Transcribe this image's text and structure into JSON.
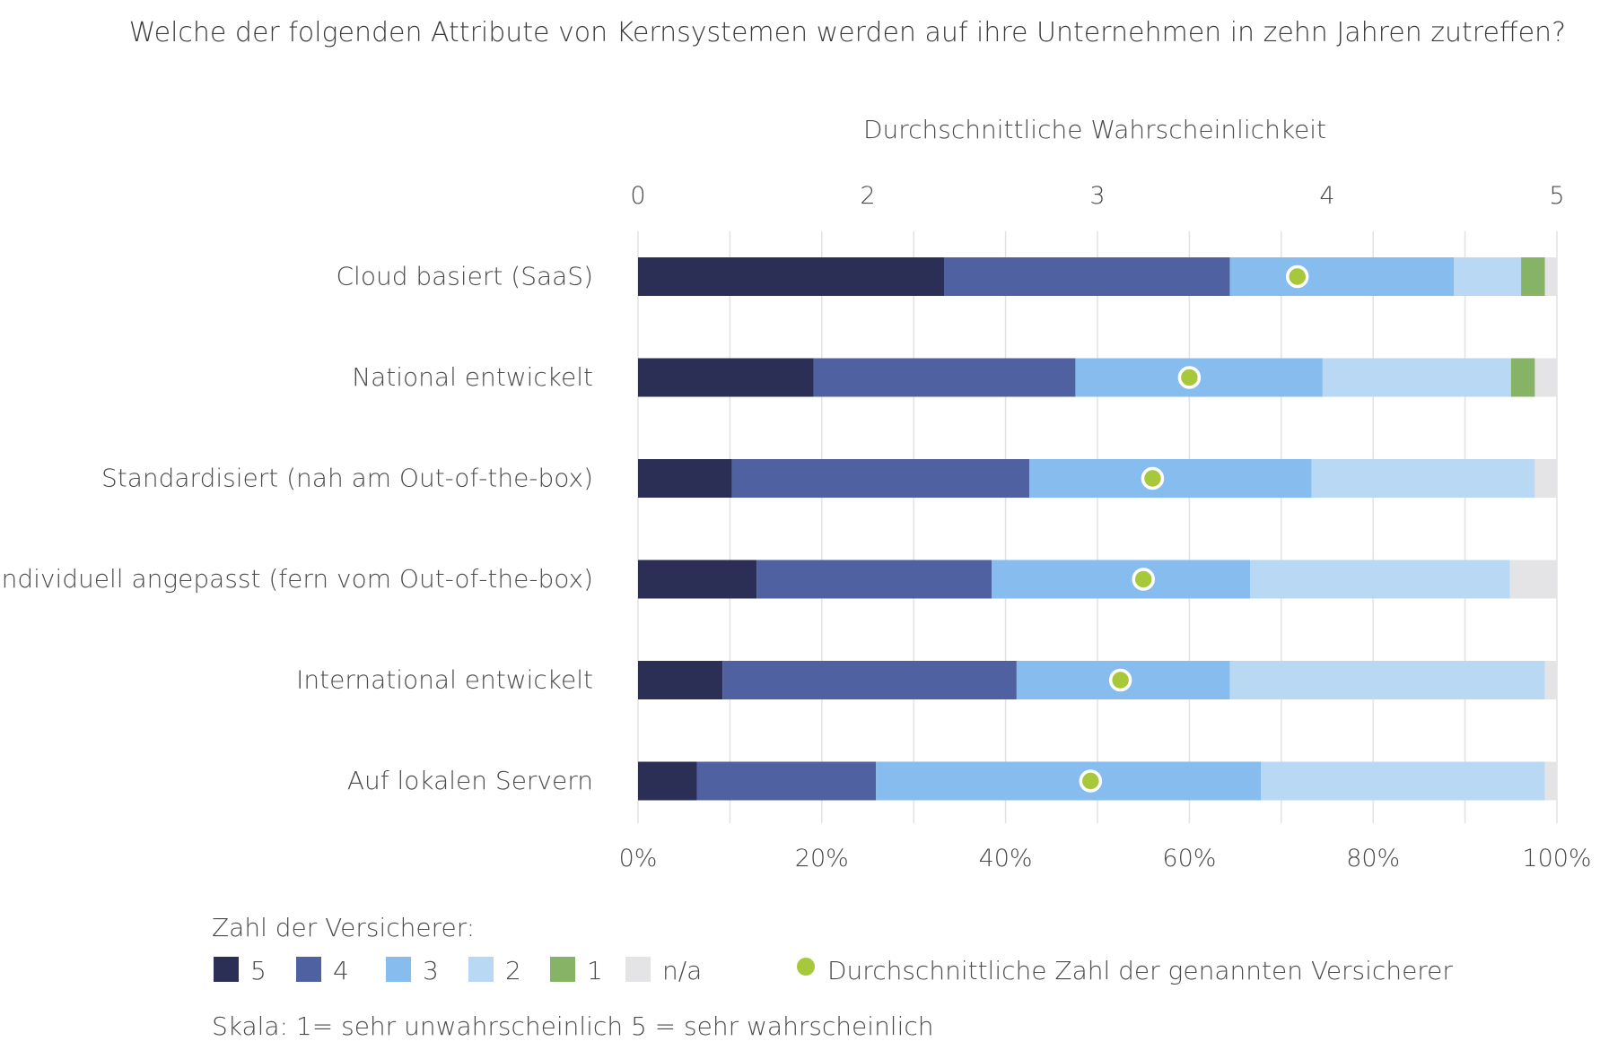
{
  "chart_data": {
    "type": "bar",
    "stacked": true,
    "orientation": "horizontal",
    "title": "Welche der folgenden Attribute von Kernsystemen werden auf ihre Unternehmen in zehn Jahren zutreffen?",
    "top_axis_label": "Durchschnittliche Wahrscheinlichkeit",
    "top_axis_ticks": [
      "0",
      "2",
      "3",
      "4",
      "5"
    ],
    "bottom_axis_ticks": [
      "0%",
      "20%",
      "40%",
      "60%",
      "80%",
      "100%"
    ],
    "xlim": [
      0,
      100
    ],
    "grid": true,
    "categories": [
      "Cloud basiert (SaaS)",
      "National entwickelt",
      "Standardisiert (nah am Out-of-the-box)",
      "Individuell angepasst (fern vom Out-of-the-box)",
      "International entwickelt",
      "Auf lokalen Servern"
    ],
    "series": [
      {
        "name": "5",
        "color": "#2b2f55",
        "values": [
          33.3,
          19.1,
          10.2,
          12.9,
          9.2,
          6.4
        ]
      },
      {
        "name": "4",
        "color": "#4f61a1",
        "values": [
          31.1,
          28.5,
          32.4,
          25.6,
          32.0,
          19.5
        ]
      },
      {
        "name": "3",
        "color": "#86bdee",
        "values": [
          24.4,
          26.9,
          30.7,
          28.1,
          23.2,
          41.9
        ]
      },
      {
        "name": "2",
        "color": "#b8d8f4",
        "values": [
          7.3,
          20.5,
          24.3,
          28.3,
          34.3,
          30.9
        ]
      },
      {
        "name": "1",
        "color": "#87b366",
        "values": [
          2.6,
          2.6,
          0,
          0,
          0,
          0
        ]
      },
      {
        "name": "n/a",
        "color": "#e4e4e6",
        "values": [
          1.3,
          2.4,
          2.4,
          5.1,
          1.3,
          1.3
        ]
      }
    ],
    "average_marker": {
      "name": "Durchschnittliche Zahl der genannten Versicherer",
      "color": "#a8c83c",
      "values": [
        3.87,
        3.4,
        3.24,
        3.2,
        3.1,
        2.97
      ]
    },
    "legend_title": "Zahl der Versicherer:",
    "legend_position": "bottom-left",
    "footnote": "Skala: 1= sehr unwahrscheinlich 5 = sehr wahrscheinlich"
  }
}
